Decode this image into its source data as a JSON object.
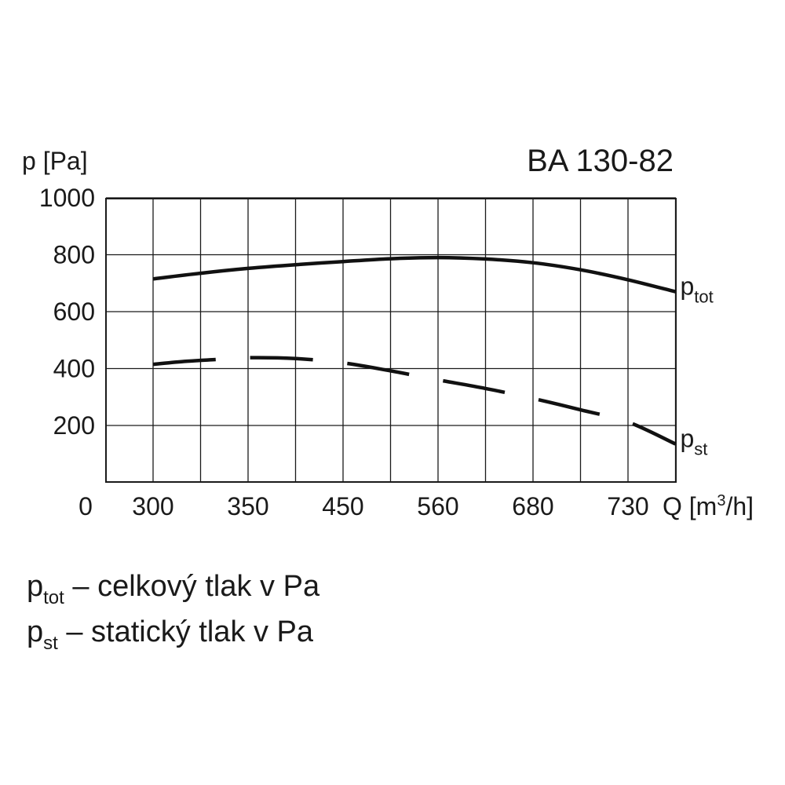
{
  "chart_data": {
    "type": "line",
    "title": "BA 130-82",
    "ylabel": "p [Pa]",
    "xlabel_prefix": "Q [m",
    "xlabel_sup": "3",
    "xlabel_suffix": "/h]",
    "origin_label": "0",
    "ylim": [
      0,
      1000
    ],
    "yticks": [
      200,
      400,
      600,
      800,
      1000
    ],
    "x_categories": [
      "300",
      "350",
      "450",
      "560",
      "680",
      "730"
    ],
    "grid": true,
    "series": [
      {
        "name_main": "p",
        "name_sub": "tot",
        "style": "solid",
        "points": [
          {
            "x": 0,
            "y": 715
          },
          {
            "x": 0.5,
            "y": 735
          },
          {
            "x": 1,
            "y": 752
          },
          {
            "x": 1.5,
            "y": 765
          },
          {
            "x": 2,
            "y": 776
          },
          {
            "x": 2.5,
            "y": 786
          },
          {
            "x": 3,
            "y": 790
          },
          {
            "x": 3.5,
            "y": 785
          },
          {
            "x": 4,
            "y": 772
          },
          {
            "x": 4.5,
            "y": 747
          },
          {
            "x": 5,
            "y": 712
          },
          {
            "x": 5.5,
            "y": 670
          }
        ]
      },
      {
        "name_main": "p",
        "name_sub": "st",
        "style": "dashed",
        "points": [
          {
            "x": 0,
            "y": 415
          },
          {
            "x": 0.33,
            "y": 425
          },
          {
            "x": 0.67,
            "y": 432
          },
          {
            "x": 1,
            "y": 438
          },
          {
            "x": 1.5,
            "y": 435
          },
          {
            "x": 2,
            "y": 420
          },
          {
            "x": 2.5,
            "y": 392
          },
          {
            "x": 3,
            "y": 360
          },
          {
            "x": 3.5,
            "y": 330
          },
          {
            "x": 4,
            "y": 295
          },
          {
            "x": 4.5,
            "y": 255
          },
          {
            "x": 5,
            "y": 212
          },
          {
            "x": 5.5,
            "y": 135
          }
        ]
      }
    ]
  },
  "legend": [
    {
      "symbol": "p",
      "sub": "tot",
      "text": " – celkový tlak v Pa"
    },
    {
      "symbol": "p",
      "sub": "st",
      "text": " – statický  tlak v Pa"
    }
  ]
}
